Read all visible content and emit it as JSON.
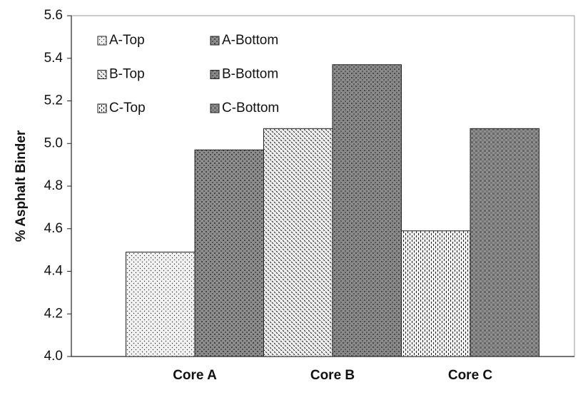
{
  "chart_data": {
    "type": "bar",
    "y_label": "% Asphalt Binder",
    "categories": [
      "Core A",
      "Core B",
      "Core C"
    ],
    "series": [
      {
        "name": "A-Top",
        "color": "#f2f2f2",
        "values": [
          4.49,
          null,
          null
        ]
      },
      {
        "name": "A-Bottom",
        "color": "#8c8c8c",
        "values": [
          4.97,
          null,
          null
        ]
      },
      {
        "name": "B-Top",
        "color": "#eeeeee",
        "values": [
          null,
          5.07,
          null
        ]
      },
      {
        "name": "B-Bottom",
        "color": "#8a8a8a",
        "values": [
          null,
          5.37,
          null
        ]
      },
      {
        "name": "C-Top",
        "color": "#f0f0f0",
        "values": [
          null,
          null,
          4.59
        ]
      },
      {
        "name": "C-Bottom",
        "color": "#909090",
        "values": [
          null,
          null,
          5.07
        ]
      }
    ],
    "ylim": [
      4.0,
      5.6
    ],
    "yticks": [
      {
        "value": 4.0,
        "label": "4.0"
      },
      4.2,
      4.4,
      4.6,
      4.8,
      {
        "value": 5.0,
        "label": "5.0"
      },
      5.2,
      5.4,
      5.6
    ],
    "legend": "upper left",
    "grid": false
  }
}
